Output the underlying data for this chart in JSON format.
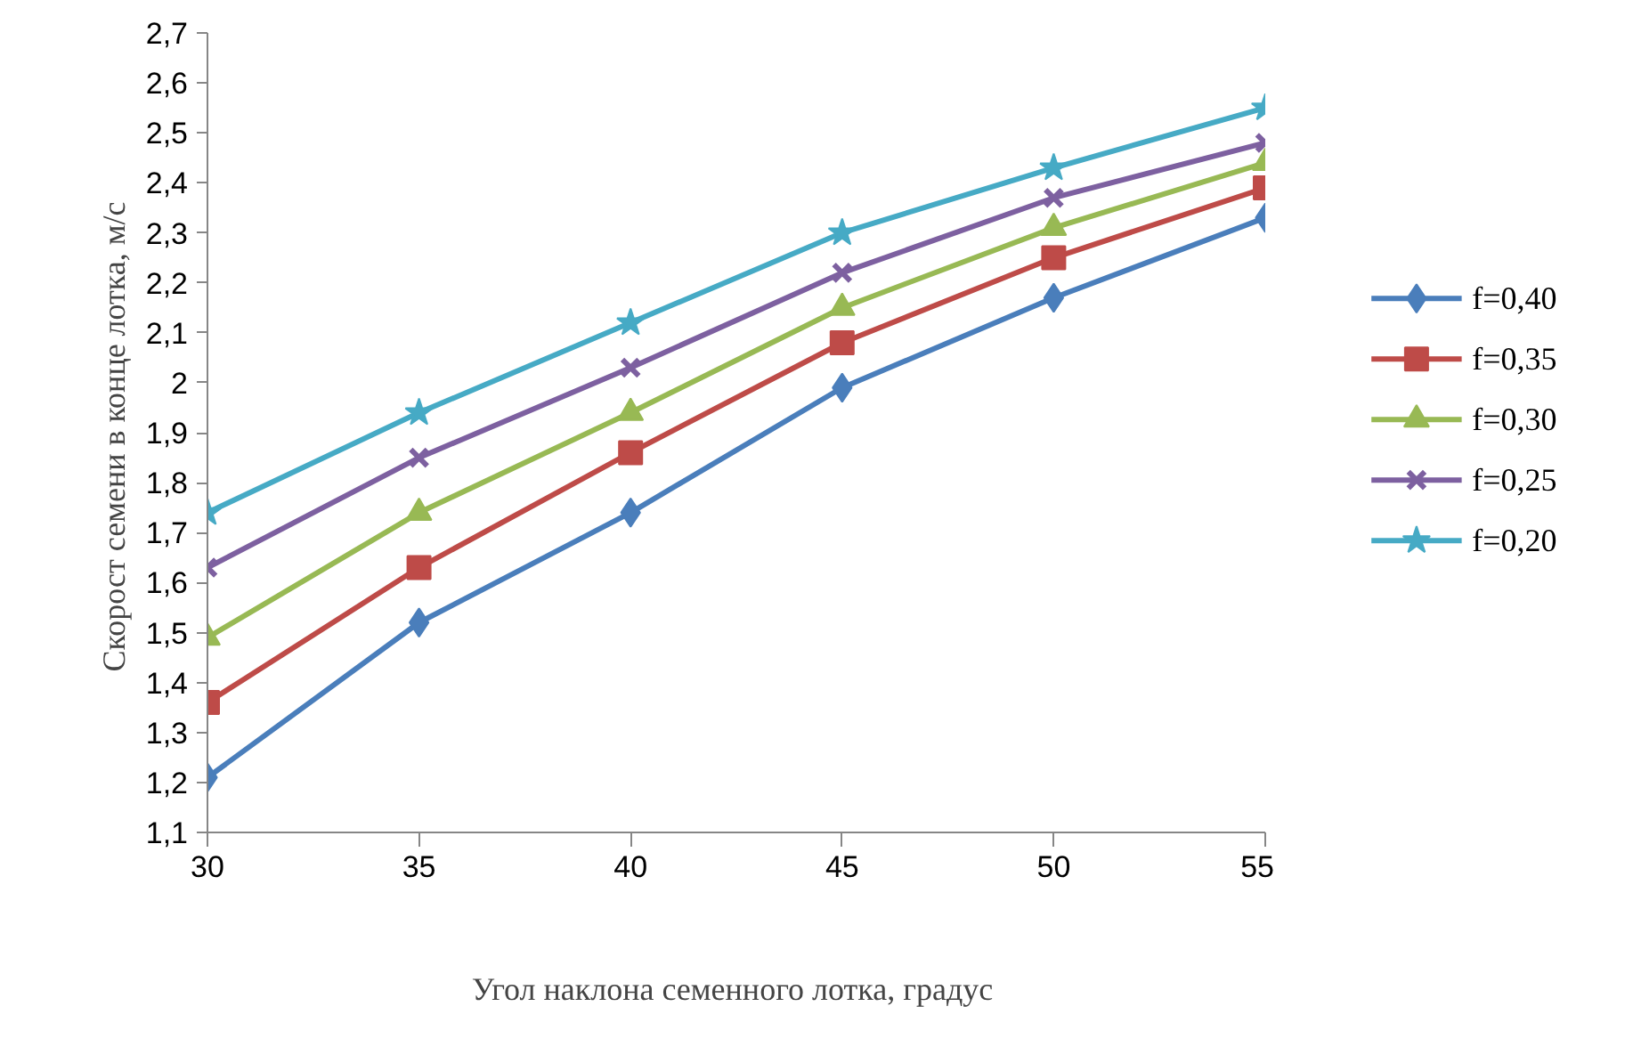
{
  "chart_data": {
    "type": "line",
    "xlabel": "Угол наклона  семенного лотка, градус",
    "ylabel": "Скорост семени в конце  лотка, м/с",
    "x": [
      30,
      35,
      40,
      45,
      50,
      55
    ],
    "xlim": [
      30,
      55
    ],
    "xticks": [
      30,
      35,
      40,
      45,
      50,
      55
    ],
    "ylim": [
      1.1,
      2.7
    ],
    "yticks": [
      {
        "value": 1.1,
        "label": "1,1"
      },
      {
        "value": 1.2,
        "label": "1,2"
      },
      {
        "value": 1.3,
        "label": "1,3"
      },
      {
        "value": 1.4,
        "label": "1,4"
      },
      {
        "value": 1.5,
        "label": "1,5"
      },
      {
        "value": 1.6,
        "label": "1,6"
      },
      {
        "value": 1.7,
        "label": "1,7"
      },
      {
        "value": 1.8,
        "label": "1,8"
      },
      {
        "value": 1.9,
        "label": "1,9"
      },
      {
        "value": 2.0,
        "label": "2"
      },
      {
        "value": 2.1,
        "label": "2,1"
      },
      {
        "value": 2.2,
        "label": "2,2"
      },
      {
        "value": 2.3,
        "label": "2,3"
      },
      {
        "value": 2.4,
        "label": "2,4"
      },
      {
        "value": 2.5,
        "label": "2,5"
      },
      {
        "value": 2.6,
        "label": "2,6"
      },
      {
        "value": 2.7,
        "label": "2,7"
      }
    ],
    "grid": false,
    "legend": "right",
    "line_style": "solid",
    "series": [
      {
        "name": "f=0,40",
        "color": "#4a7ebb",
        "marker": "diamond",
        "values": [
          1.21,
          1.52,
          1.74,
          1.99,
          2.17,
          2.33
        ]
      },
      {
        "name": "f=0,35",
        "color": "#be4b48",
        "marker": "square",
        "values": [
          1.36,
          1.63,
          1.86,
          2.08,
          2.25,
          2.39
        ]
      },
      {
        "name": "f=0,30",
        "color": "#98b954",
        "marker": "triangle",
        "values": [
          1.49,
          1.74,
          1.94,
          2.15,
          2.31,
          2.44
        ]
      },
      {
        "name": "f=0,25",
        "color": "#7d60a0",
        "marker": "cross",
        "values": [
          1.63,
          1.85,
          2.03,
          2.22,
          2.37,
          2.48
        ]
      },
      {
        "name": "f=0,20",
        "color": "#46aac5",
        "marker": "star",
        "values": [
          1.74,
          1.94,
          2.12,
          2.3,
          2.43,
          2.55
        ]
      }
    ]
  }
}
